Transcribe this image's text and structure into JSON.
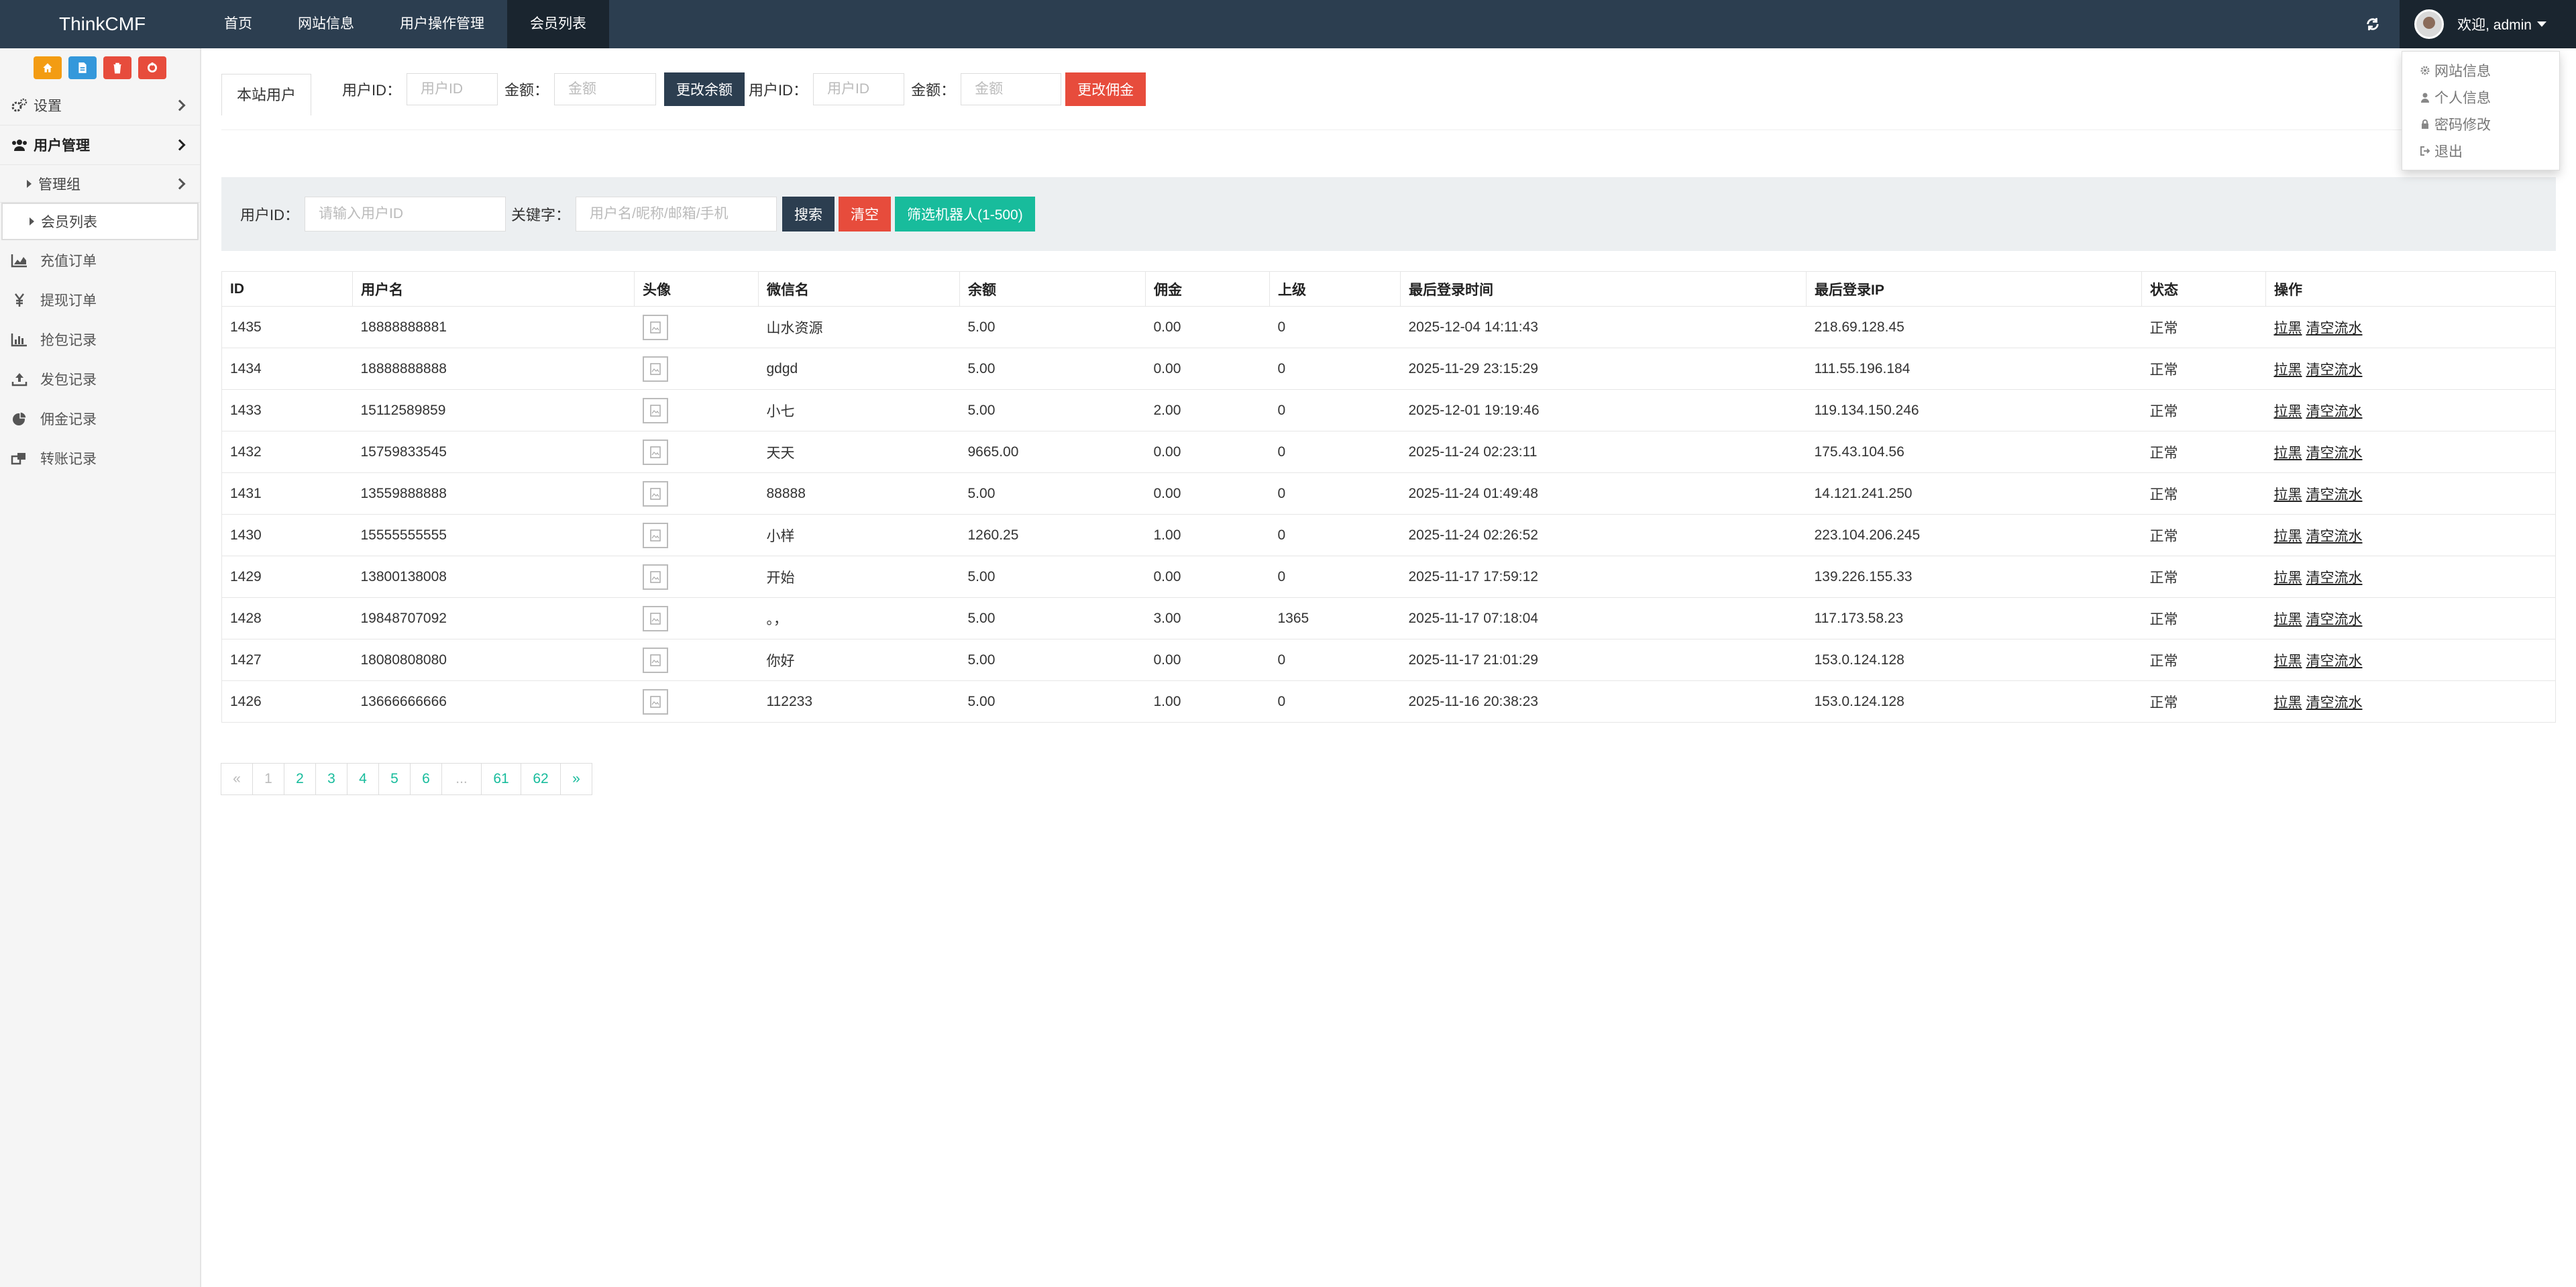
{
  "navbar": {
    "brand": "ThinkCMF",
    "tabs": [
      {
        "label": "首页"
      },
      {
        "label": "网站信息"
      },
      {
        "label": "用户操作管理"
      },
      {
        "label": "会员列表"
      }
    ],
    "user_label": "欢迎, admin"
  },
  "dropdown": {
    "items": [
      {
        "label": "网站信息",
        "icon": "gear-icon"
      },
      {
        "label": "个人信息",
        "icon": "user-icon"
      },
      {
        "label": "密码修改",
        "icon": "lock-icon"
      },
      {
        "label": "退出",
        "icon": "logout-icon"
      }
    ]
  },
  "sidebar": {
    "shortcut_colors": [
      "#f39c12",
      "#3498db",
      "#e74c3c",
      "#e74c3c"
    ],
    "items": [
      {
        "label": "设置"
      },
      {
        "label": "用户管理"
      },
      {
        "label": "管理组"
      },
      {
        "label": "会员列表"
      },
      {
        "label": "充值订单"
      },
      {
        "label": "提现订单"
      },
      {
        "label": "抢包记录"
      },
      {
        "label": "发包记录"
      },
      {
        "label": "佣金记录"
      },
      {
        "label": "转账记录"
      }
    ]
  },
  "topform": {
    "tab_label": "本站用户",
    "userid_label": "用户ID：",
    "userid_placeholder": "用户ID",
    "amount_label": "金额：",
    "amount_placeholder": "金额",
    "btn_balance": "更改余额",
    "btn_commission": "更改佣金"
  },
  "filter": {
    "userid_label": "用户ID：",
    "userid_placeholder": "请输入用户ID",
    "keyword_label": "关键字：",
    "keyword_placeholder": "用户名/昵称/邮箱/手机",
    "btn_search": "搜索",
    "btn_clear": "清空",
    "btn_robot": "筛选机器人(1-500)"
  },
  "table": {
    "headers": [
      "ID",
      "用户名",
      "头像",
      "微信名",
      "余额",
      "佣金",
      "上级",
      "最后登录时间",
      "最后登录IP",
      "状态",
      "操作"
    ],
    "op_labels": [
      "拉黑",
      "清空流水"
    ],
    "rows": [
      {
        "id": "1435",
        "user": "18888888881",
        "wx": "山水资源",
        "bal": "5.00",
        "com": "0.00",
        "up": "0",
        "time": "2025-12-04 14:11:43",
        "ip": "218.69.128.45",
        "status": "正常"
      },
      {
        "id": "1434",
        "user": "18888888888",
        "wx": "gdgd",
        "bal": "5.00",
        "com": "0.00",
        "up": "0",
        "time": "2025-11-29 23:15:29",
        "ip": "111.55.196.184",
        "status": "正常"
      },
      {
        "id": "1433",
        "user": "15112589859",
        "wx": "小七",
        "bal": "5.00",
        "com": "2.00",
        "up": "0",
        "time": "2025-12-01 19:19:46",
        "ip": "119.134.150.246",
        "status": "正常"
      },
      {
        "id": "1432",
        "user": "15759833545",
        "wx": "天天",
        "bal": "9665.00",
        "com": "0.00",
        "up": "0",
        "time": "2025-11-24 02:23:11",
        "ip": "175.43.104.56",
        "status": "正常"
      },
      {
        "id": "1431",
        "user": "13559888888",
        "wx": "88888",
        "bal": "5.00",
        "com": "0.00",
        "up": "0",
        "time": "2025-11-24 01:49:48",
        "ip": "14.121.241.250",
        "status": "正常"
      },
      {
        "id": "1430",
        "user": "15555555555",
        "wx": "小样",
        "bal": "1260.25",
        "com": "1.00",
        "up": "0",
        "time": "2025-11-24 02:26:52",
        "ip": "223.104.206.245",
        "status": "正常"
      },
      {
        "id": "1429",
        "user": "13800138008",
        "wx": "开始",
        "bal": "5.00",
        "com": "0.00",
        "up": "0",
        "time": "2025-11-17 17:59:12",
        "ip": "139.226.155.33",
        "status": "正常"
      },
      {
        "id": "1428",
        "user": "19848707092",
        "wx": "。，",
        "bal": "5.00",
        "com": "3.00",
        "up": "1365",
        "time": "2025-11-17 07:18:04",
        "ip": "117.173.58.23",
        "status": "正常"
      },
      {
        "id": "1427",
        "user": "18080808080",
        "wx": "你好",
        "bal": "5.00",
        "com": "0.00",
        "up": "0",
        "time": "2025-11-17 21:01:29",
        "ip": "153.0.124.128",
        "status": "正常"
      },
      {
        "id": "1426",
        "user": "13666666666",
        "wx": "112233",
        "bal": "5.00",
        "com": "1.00",
        "up": "0",
        "time": "2025-11-16 20:38:23",
        "ip": "153.0.124.128",
        "status": "正常"
      }
    ]
  },
  "pagination": {
    "items": [
      "«",
      "1",
      "2",
      "3",
      "4",
      "5",
      "6",
      "...",
      "61",
      "62",
      "»"
    ]
  }
}
